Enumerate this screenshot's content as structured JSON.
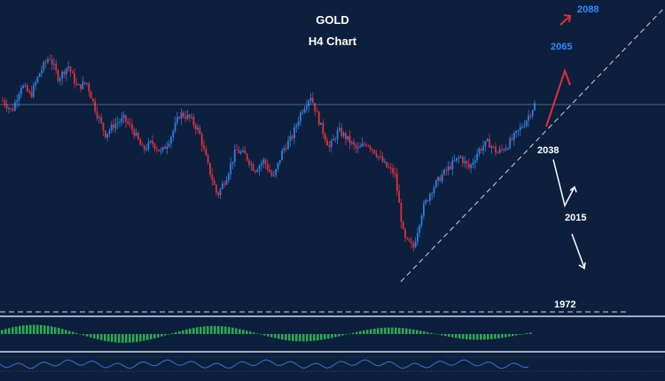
{
  "page": {
    "title": "GOLD",
    "subtitle": "H4 Chart"
  },
  "colors": {
    "background": "#0c1f3d",
    "bull_candle": "#2f7fe0",
    "bear_candle": "#e0303a",
    "trendline": "#c8d4e6",
    "target_up": "#2e8fff",
    "arrow_up": "#e0303a",
    "arrow_down": "#ffffff",
    "histogram": "#2ea84f",
    "oscillator": "#3f6fd6"
  },
  "chart_data": {
    "type": "candlestick",
    "instrument": "GOLD",
    "timeframe": "H4",
    "price_levels": [
      {
        "label": "2088",
        "value": 2088,
        "color": "blue"
      },
      {
        "label": "2065",
        "value": 2065,
        "color": "blue"
      },
      {
        "label": "2038",
        "value": 2038,
        "color": "white"
      },
      {
        "label": "2015",
        "value": 2015,
        "color": "white"
      },
      {
        "label": "1972",
        "value": 1972,
        "color": "white"
      }
    ],
    "close_path": [
      2068,
      2060,
      2080,
      2072,
      2090,
      2102,
      2085,
      2095,
      2078,
      2082,
      2060,
      2042,
      2050,
      2054,
      2045,
      2030,
      2036,
      2028,
      2040,
      2058,
      2055,
      2045,
      2018,
      1995,
      2010,
      2030,
      2026,
      2015,
      2022,
      2008,
      2030,
      2040,
      2060,
      2072,
      2050,
      2032,
      2045,
      2038,
      2030,
      2036,
      2028,
      2018,
      2012,
      1962,
      1955,
      1985,
      2000,
      2010,
      2018,
      2025,
      2016,
      2030,
      2036,
      2028,
      2033,
      2042,
      2052,
      2065
    ],
    "trendline": {
      "from_value": 1955,
      "to_value": 2088,
      "style": "dashed"
    },
    "scenarios": {
      "bullish": [
        "2038",
        "2065",
        "2088"
      ],
      "bearish": [
        "2038",
        "2015",
        "1972"
      ]
    },
    "indicators": [
      "histogram",
      "oscillator"
    ]
  }
}
